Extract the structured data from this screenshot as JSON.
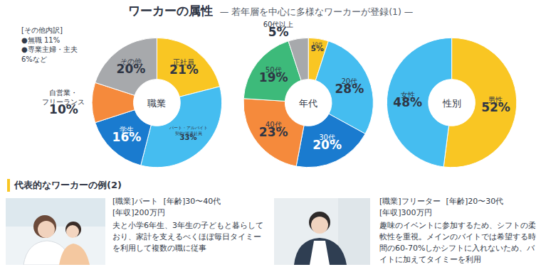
{
  "header": {
    "title": "ワーカーの属性",
    "subtitle": "— 若年層を中心に多様なワーカーが登録(1) —"
  },
  "chart_data": [
    {
      "type": "pie",
      "title": "職業",
      "categories": [
        "正社員",
        "パート・アルバイト\n契約/派遣社員",
        "学生",
        "自営業・\nフリーランス",
        "その他"
      ],
      "values": [
        21,
        33,
        16,
        10,
        20
      ],
      "value_labels": [
        "21%",
        "33%",
        "16%",
        "10%",
        "20%"
      ],
      "colors": [
        "#f9c623",
        "#45bdf0",
        "#1a7bcf",
        "#f58a3c",
        "#a7a9ac"
      ],
      "data_labels": true
    },
    {
      "type": "pie",
      "title": "年代",
      "categories": [
        "10代",
        "20代",
        "30代",
        "40代",
        "50代",
        "60代以上"
      ],
      "values": [
        5,
        28,
        20,
        23,
        19,
        5
      ],
      "value_labels": [
        "5%",
        "28%",
        "20%",
        "23%",
        "19%",
        "5%"
      ],
      "colors": [
        "#f9c623",
        "#45bdf0",
        "#1a7bcf",
        "#f58a3c",
        "#3dba7a",
        "#a7a9ac"
      ],
      "data_labels": true
    },
    {
      "type": "pie",
      "title": "性別",
      "categories": [
        "男性",
        "女性"
      ],
      "values": [
        52,
        48
      ],
      "value_labels": [
        "52%",
        "48%"
      ],
      "colors": [
        "#f9c623",
        "#45bdf0"
      ],
      "data_labels": true
    }
  ],
  "note": {
    "title": "[その他内訳]",
    "items": [
      "●無職 11%",
      "●専業主婦・主夫 6%など"
    ]
  },
  "examples": {
    "title": "代表的なワーカーの例(2)",
    "items": [
      {
        "tags": [
          "[職業]パート",
          "[年齢]30〜40代",
          "[年収]200万円"
        ],
        "description": "夫と小学6年生、3年生の子どもと暮らしており、家計を支えるべくほぼ毎日タイミーを利用して複数の職に従事"
      },
      {
        "tags": [
          "[職業]フリーター",
          "[年齢]20〜30代",
          "[年収]300万円"
        ],
        "description": "趣味のイベントに参加するため、シフトの柔軟性を重視。メインのバイトでは希望する時間の60-70%しかシフトに入れないため、バイトに加えてタイミーを利用"
      }
    ]
  }
}
